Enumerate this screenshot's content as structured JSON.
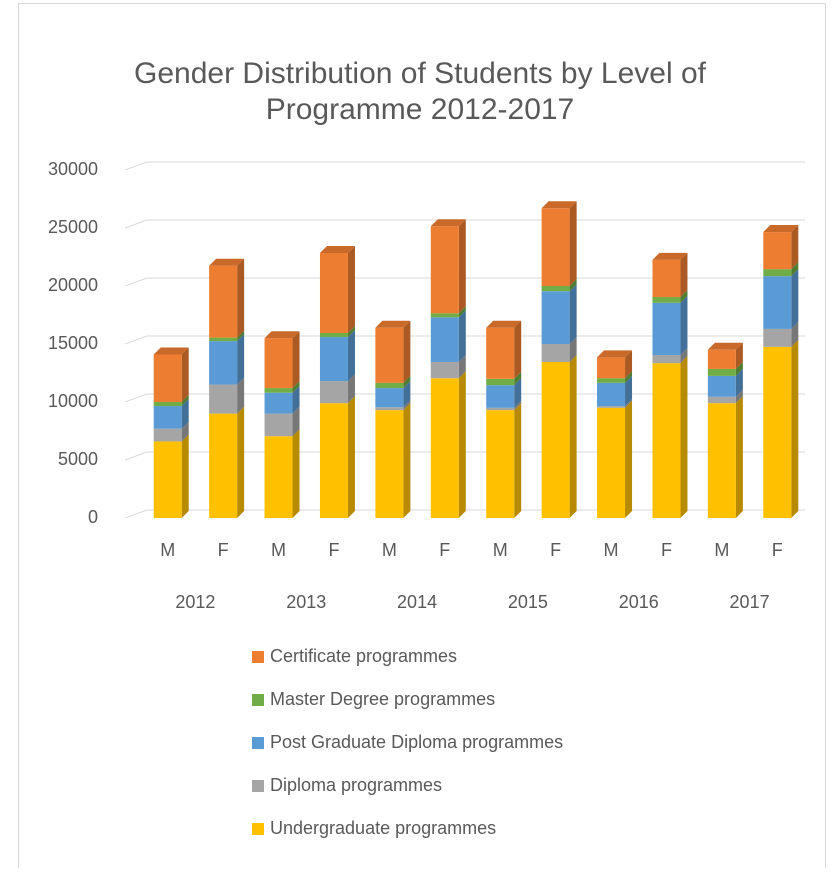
{
  "chart_data": {
    "type": "bar",
    "stacked": true,
    "three_d": true,
    "title": "Gender Distribution of Students by Level of Programme 2012-2017",
    "categories": [
      "M",
      "F",
      "M",
      "F",
      "M",
      "F",
      "M",
      "F",
      "M",
      "F",
      "M",
      "F"
    ],
    "groups": [
      "2012",
      "2013",
      "2014",
      "2015",
      "2016",
      "2017"
    ],
    "ylim": [
      0,
      30000
    ],
    "yticks": [
      0,
      5000,
      10000,
      15000,
      20000,
      25000,
      30000
    ],
    "grid": true,
    "legend": "bottom",
    "series": [
      {
        "name": "Undergraduate programmes",
        "color": "#ffc000",
        "values": [
          6600,
          9000,
          7050,
          9900,
          9300,
          12050,
          9300,
          13450,
          9500,
          13350,
          9900,
          14750
        ]
      },
      {
        "name": "Diploma programmes",
        "color": "#a5a5a5",
        "values": [
          1100,
          2500,
          1950,
          1900,
          250,
          1400,
          200,
          1550,
          150,
          700,
          550,
          1550
        ]
      },
      {
        "name": "Post Graduate Diploma programmes",
        "color": "#5b9bd5",
        "values": [
          1950,
          3750,
          1800,
          3800,
          1650,
          3850,
          1950,
          4550,
          2000,
          4500,
          1800,
          4550
        ]
      },
      {
        "name": "Master Degree programmes",
        "color": "#70ad47",
        "values": [
          350,
          300,
          400,
          350,
          450,
          350,
          550,
          450,
          400,
          500,
          600,
          600
        ]
      },
      {
        "name": "Certificate programmes",
        "color": "#ed7d31",
        "values": [
          4100,
          6200,
          4300,
          6900,
          4750,
          7500,
          4400,
          6700,
          1800,
          3200,
          1650,
          3200
        ]
      }
    ]
  }
}
